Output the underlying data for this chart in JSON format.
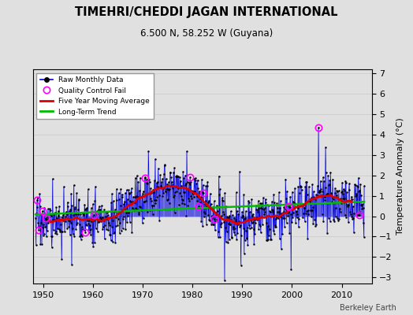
{
  "title": "TIMEHRI/CHEDDI JAGAN INTERNATIONAL",
  "subtitle": "6.500 N, 58.252 W (Guyana)",
  "ylabel": "Temperature Anomaly (°C)",
  "credit": "Berkeley Earth",
  "xlim": [
    1948,
    2016
  ],
  "ylim": [
    -3.3,
    7.2
  ],
  "yticks": [
    -3,
    -2,
    -1,
    0,
    1,
    2,
    3,
    4,
    5,
    6,
    7
  ],
  "xticks": [
    1950,
    1960,
    1970,
    1980,
    1990,
    2000,
    2010
  ],
  "background_color": "#e0e0e0",
  "plot_bg_color": "#ffffff",
  "grid_color": "#c8c8c8",
  "line_color": "#0000dd",
  "ma_color": "#dd0000",
  "trend_color": "#00bb00",
  "qc_color": "#ff00ff",
  "seed": 17,
  "start_year": 1948.5,
  "end_year": 2014.5
}
